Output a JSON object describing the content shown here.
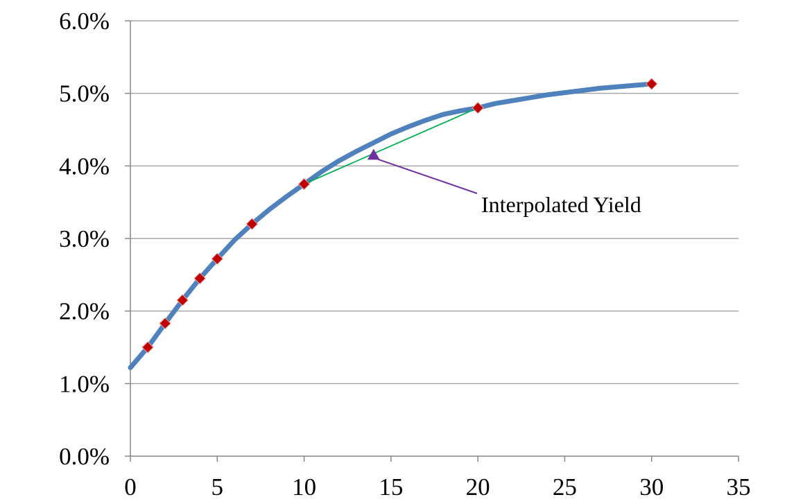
{
  "chart_data": {
    "type": "line",
    "title": "",
    "xlabel": "",
    "ylabel": "",
    "xlim": [
      0,
      35
    ],
    "ylim": [
      0.0,
      6.0
    ],
    "x_ticks": [
      0,
      5,
      10,
      15,
      20,
      25,
      30,
      35
    ],
    "x_tick_labels": [
      "0",
      "5",
      "10",
      "15",
      "20",
      "25",
      "30",
      "35"
    ],
    "y_ticks": [
      0.0,
      1.0,
      2.0,
      3.0,
      4.0,
      5.0,
      6.0
    ],
    "y_tick_labels": [
      "0.0%",
      "1.0%",
      "2.0%",
      "3.0%",
      "4.0%",
      "5.0%",
      "6.0%"
    ],
    "grid": "horizontal",
    "legend": "none",
    "series": [
      {
        "kind": "curve",
        "color": "#4F81BD",
        "x": [
          0,
          1,
          2,
          3,
          4,
          5,
          6,
          7,
          8,
          9,
          10,
          11,
          12,
          13,
          14,
          15,
          16,
          17,
          18,
          19,
          20,
          21,
          22,
          23,
          24,
          25,
          26,
          27,
          28,
          29,
          30
        ],
        "y": [
          1.22,
          1.5,
          1.83,
          2.15,
          2.45,
          2.72,
          2.98,
          3.2,
          3.4,
          3.58,
          3.75,
          3.92,
          4.07,
          4.2,
          4.32,
          4.44,
          4.54,
          4.63,
          4.71,
          4.76,
          4.8,
          4.86,
          4.9,
          4.94,
          4.98,
          5.01,
          5.04,
          5.07,
          5.09,
          5.11,
          5.13
        ]
      },
      {
        "kind": "points",
        "marker": "diamond",
        "color": "#C00000",
        "x": [
          1,
          2,
          3,
          4,
          5,
          7,
          10,
          20,
          30
        ],
        "y": [
          1.5,
          1.83,
          2.15,
          2.45,
          2.72,
          3.2,
          3.75,
          4.8,
          5.13
        ]
      },
      {
        "kind": "segment",
        "color": "#00B050",
        "x": [
          10,
          20
        ],
        "y": [
          3.75,
          4.8
        ]
      }
    ],
    "annotations": [
      {
        "text": "Interpolated Yield",
        "point": [
          14,
          4.15
        ],
        "marker": "triangle",
        "color": "#7030A0"
      }
    ]
  }
}
